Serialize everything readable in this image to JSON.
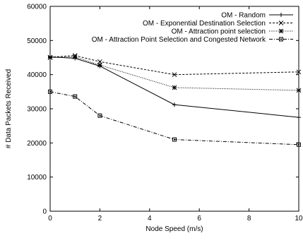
{
  "chart_data": {
    "type": "line",
    "title": "",
    "xlabel": "Node Speed (m/s)",
    "ylabel": "# Data Packets Received",
    "xlim": [
      0,
      10
    ],
    "ylim": [
      0,
      60000
    ],
    "xticks": [
      "0",
      "2",
      "4",
      "6",
      "8",
      "10"
    ],
    "yticks": [
      "0",
      "10000",
      "20000",
      "30000",
      "40000",
      "50000",
      "60000"
    ],
    "grid": false,
    "legend_position": "top-right",
    "series": [
      {
        "name": "OM - Random",
        "marker": "plus",
        "dash": "solid",
        "points": [
          [
            0,
            45200
          ],
          [
            1,
            44800
          ],
          [
            2,
            42500
          ],
          [
            5,
            31200
          ],
          [
            10,
            27500
          ]
        ]
      },
      {
        "name": "OM - Exponential Destination Selection",
        "marker": "x",
        "dash": "dashed",
        "points": [
          [
            0,
            45100
          ],
          [
            1,
            45600
          ],
          [
            2,
            43800
          ],
          [
            5,
            40000
          ],
          [
            10,
            40800
          ]
        ]
      },
      {
        "name": "OM - Attraction point selection",
        "marker": "star",
        "dash": "dotted",
        "points": [
          [
            0,
            45000
          ],
          [
            1,
            45200
          ],
          [
            2,
            42800
          ],
          [
            5,
            36200
          ],
          [
            10,
            35400
          ]
        ]
      },
      {
        "name": "OM - Attraction Point Selection and Congested Network",
        "marker": "square",
        "dash": "dashdot",
        "points": [
          [
            0,
            35000
          ],
          [
            1,
            33600
          ],
          [
            2,
            28000
          ],
          [
            5,
            21000
          ],
          [
            10,
            19500
          ]
        ]
      }
    ]
  }
}
